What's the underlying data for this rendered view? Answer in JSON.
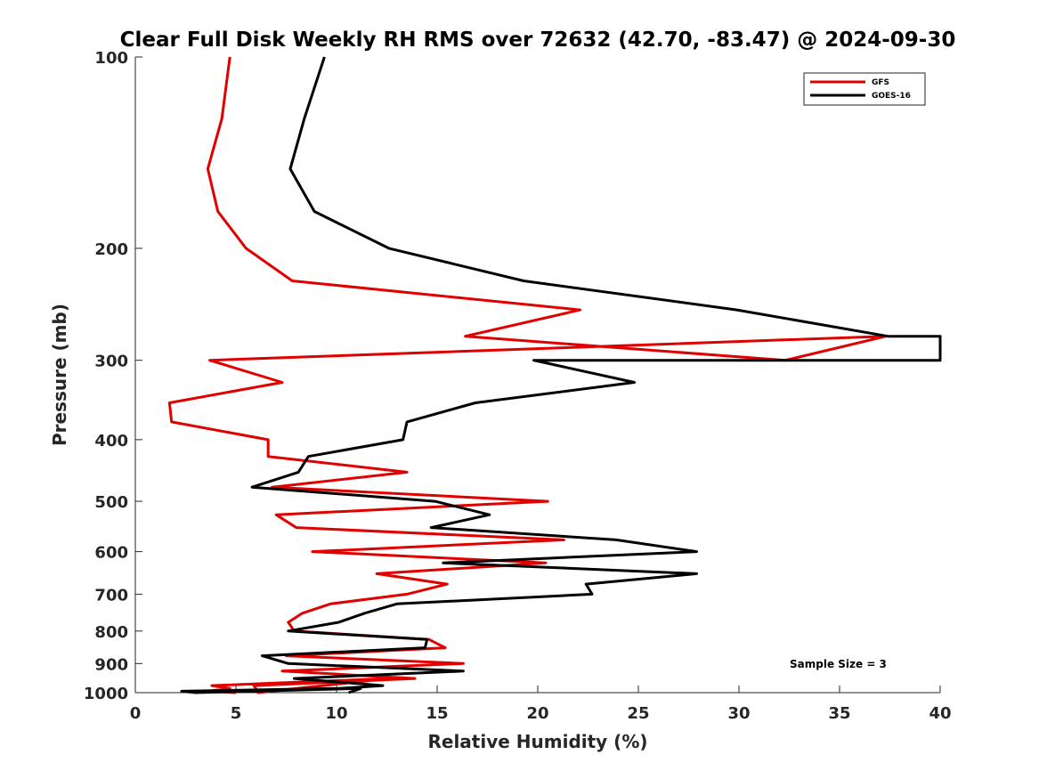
{
  "chart_data": {
    "type": "line",
    "title": "Clear Full Disk Weekly RH RMS over 72632 (42.70, -83.47) @ 2024-09-30",
    "xlabel": "Relative Humidity (%)",
    "ylabel": "Pressure (mb)",
    "xlim": [
      0,
      40
    ],
    "ylim": [
      100,
      1000
    ],
    "yscale": "log",
    "y_reversed": true,
    "xticks": [
      0,
      5,
      10,
      15,
      20,
      25,
      30,
      35,
      40
    ],
    "yticks": [
      100,
      200,
      300,
      400,
      500,
      600,
      700,
      800,
      900,
      1000
    ],
    "grid": false,
    "legend_position": "top-right",
    "annotation": "Sample Size = 3",
    "series": [
      {
        "name": "GFS",
        "color": "#e00000",
        "points": [
          [
            4.7,
            100
          ],
          [
            4.3,
            125
          ],
          [
            3.6,
            150
          ],
          [
            4.1,
            175
          ],
          [
            5.5,
            200
          ],
          [
            7.8,
            225
          ],
          [
            22.1,
            250
          ],
          [
            16.4,
            275
          ],
          [
            32.3,
            300
          ],
          [
            37.3,
            275
          ],
          [
            3.7,
            300
          ],
          [
            7.3,
            325
          ],
          [
            1.7,
            350
          ],
          [
            1.8,
            375
          ],
          [
            6.6,
            400
          ],
          [
            6.6,
            425
          ],
          [
            13.5,
            450
          ],
          [
            6.8,
            475
          ],
          [
            20.5,
            500
          ],
          [
            7.0,
            525
          ],
          [
            8.0,
            550
          ],
          [
            21.3,
            575
          ],
          [
            8.8,
            600
          ],
          [
            20.4,
            625
          ],
          [
            12.0,
            650
          ],
          [
            15.5,
            675
          ],
          [
            13.5,
            700
          ],
          [
            9.7,
            725
          ],
          [
            8.3,
            750
          ],
          [
            7.6,
            775
          ],
          [
            7.9,
            800
          ],
          [
            14.6,
            825
          ],
          [
            15.4,
            850
          ],
          [
            7.5,
            875
          ],
          [
            16.3,
            900
          ],
          [
            7.3,
            925
          ],
          [
            13.9,
            950
          ],
          [
            5.9,
            975
          ],
          [
            6.1,
            1000
          ],
          [
            12.6,
            950
          ],
          [
            3.8,
            975
          ],
          [
            4.7,
            985
          ],
          [
            3.6,
            995
          ],
          [
            5.0,
            1000
          ]
        ]
      },
      {
        "name": "GOES-16",
        "color": "#000000",
        "points": [
          [
            9.4,
            100
          ],
          [
            8.4,
            125
          ],
          [
            7.7,
            150
          ],
          [
            8.9,
            175
          ],
          [
            12.6,
            200
          ],
          [
            19.3,
            225
          ],
          [
            29.9,
            250
          ],
          [
            37.4,
            275
          ],
          [
            40.0,
            275
          ],
          [
            40.0,
            300
          ],
          [
            19.8,
            300
          ],
          [
            24.8,
            325
          ],
          [
            16.9,
            350
          ],
          [
            13.5,
            375
          ],
          [
            13.3,
            400
          ],
          [
            8.6,
            425
          ],
          [
            8.1,
            450
          ],
          [
            5.8,
            475
          ],
          [
            14.9,
            500
          ],
          [
            17.6,
            525
          ],
          [
            14.7,
            550
          ],
          [
            23.9,
            575
          ],
          [
            27.9,
            600
          ],
          [
            15.3,
            625
          ],
          [
            27.9,
            650
          ],
          [
            22.4,
            675
          ],
          [
            22.7,
            700
          ],
          [
            13.0,
            725
          ],
          [
            11.4,
            750
          ],
          [
            10.1,
            775
          ],
          [
            7.6,
            800
          ],
          [
            14.5,
            825
          ],
          [
            14.4,
            850
          ],
          [
            6.3,
            875
          ],
          [
            7.6,
            900
          ],
          [
            16.3,
            925
          ],
          [
            7.9,
            950
          ],
          [
            12.3,
            975
          ],
          [
            10.1,
            985
          ],
          [
            2.3,
            995
          ],
          [
            3.0,
            1000
          ],
          [
            11.2,
            985
          ],
          [
            10.6,
            1000
          ]
        ]
      }
    ]
  }
}
